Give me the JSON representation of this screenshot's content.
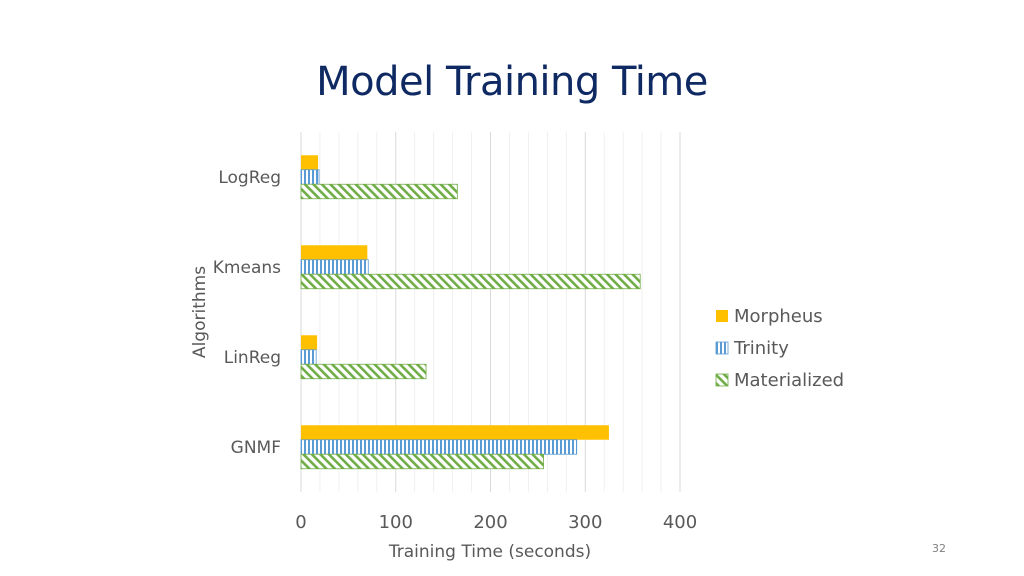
{
  "slide": {
    "title": "Model Training Time",
    "page_number": "32"
  },
  "colors": {
    "title": "#0f2a63",
    "morpheus": "#ffc000",
    "trinity": "#5b9bd5",
    "materialized": "#70ad47",
    "gridline": "#d9d9d9",
    "axis_text": "#595959"
  },
  "chart_data": {
    "type": "bar",
    "orientation": "horizontal",
    "categories": [
      "GNMF",
      "LinReg",
      "Kmeans",
      "LogReg"
    ],
    "series": [
      {
        "name": "Morpheus",
        "values": [
          325,
          17,
          70,
          18
        ],
        "pattern": "solid"
      },
      {
        "name": "Trinity",
        "values": [
          291,
          16,
          71,
          19
        ],
        "pattern": "vertical-stripes"
      },
      {
        "name": "Materialized",
        "values": [
          256,
          132,
          358,
          165
        ],
        "pattern": "diagonal-hatch"
      }
    ],
    "xlabel": "Training Time (seconds)",
    "ylabel": "Algorithms",
    "xlim": [
      0,
      400
    ],
    "xticks": [
      "0",
      "100",
      "200",
      "300",
      "400"
    ],
    "minor_gridlines": true,
    "legend_position": "right"
  }
}
